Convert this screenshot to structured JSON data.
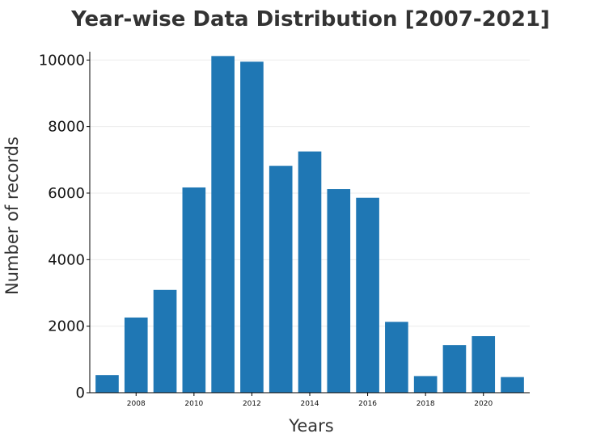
{
  "chart_data": {
    "type": "bar",
    "title": "Year-wise Data Distribution [2007-2021]",
    "xlabel": "Years",
    "ylabel": "Number of records",
    "x": [
      2007,
      2008,
      2009,
      2010,
      2011,
      2012,
      2013,
      2014,
      2015,
      2016,
      2017,
      2018,
      2019,
      2020,
      2021
    ],
    "values": [
      530,
      2260,
      3090,
      6170,
      10120,
      9950,
      6820,
      7250,
      6120,
      5860,
      2130,
      500,
      1430,
      1700,
      470
    ],
    "x_tick_labels": [
      "2008",
      "2010",
      "2012",
      "2014",
      "2016",
      "2018",
      "2020"
    ],
    "y_tick_labels": [
      "0",
      "2000",
      "4000",
      "6000",
      "8000",
      "10000"
    ],
    "y_ticks": [
      0,
      2000,
      4000,
      6000,
      8000,
      10000
    ],
    "x_ticks": [
      2008,
      2010,
      2012,
      2014,
      2016,
      2018,
      2020
    ],
    "xlim": [
      2006.4,
      2021.6
    ],
    "ylim": [
      0,
      10250
    ],
    "grid": true,
    "bar_color": "#1f77b4"
  }
}
